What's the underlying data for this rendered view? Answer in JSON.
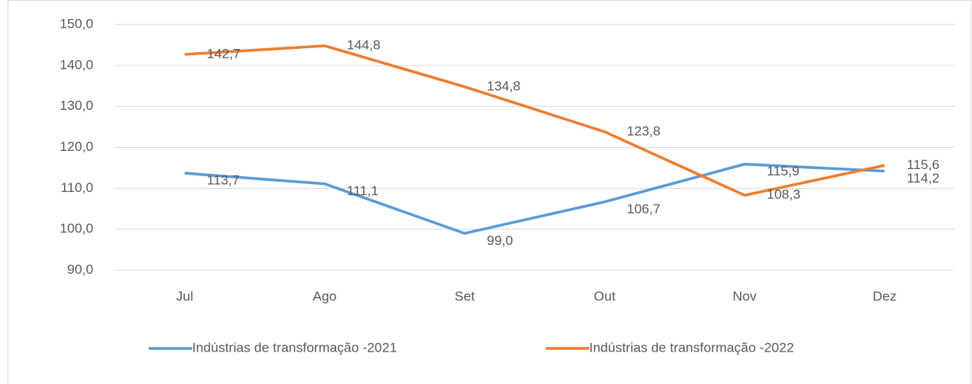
{
  "chart_data": {
    "type": "line",
    "categories": [
      "Jul",
      "Ago",
      "Set",
      "Out",
      "Nov",
      "Dez"
    ],
    "series": [
      {
        "name": "Indústrias de transformação -2021",
        "color": "#5b9bd5",
        "values": [
          113.7,
          111.1,
          99.0,
          106.7,
          115.9,
          114.2
        ],
        "value_labels": [
          "113,7",
          "111,1",
          "99,0",
          "106,7",
          "115,9",
          "114,2"
        ]
      },
      {
        "name": "Indústrias de transformação -2022",
        "color": "#ed7d31",
        "values": [
          142.7,
          144.8,
          134.8,
          123.8,
          108.3,
          115.6
        ],
        "value_labels": [
          "142,7",
          "144,8",
          "134,8",
          "123,8",
          "108,3",
          "115,6"
        ]
      }
    ],
    "ylim": [
      90,
      150
    ],
    "yticks": [
      {
        "value": 90,
        "label": "90,0"
      },
      {
        "value": 100,
        "label": "100,0"
      },
      {
        "value": 110,
        "label": "110,0"
      },
      {
        "value": 120,
        "label": "120,0"
      },
      {
        "value": 130,
        "label": "130,0"
      },
      {
        "value": 140,
        "label": "140,0"
      },
      {
        "value": 150,
        "label": "150,0"
      }
    ],
    "grid": true,
    "legend": "bottom"
  }
}
